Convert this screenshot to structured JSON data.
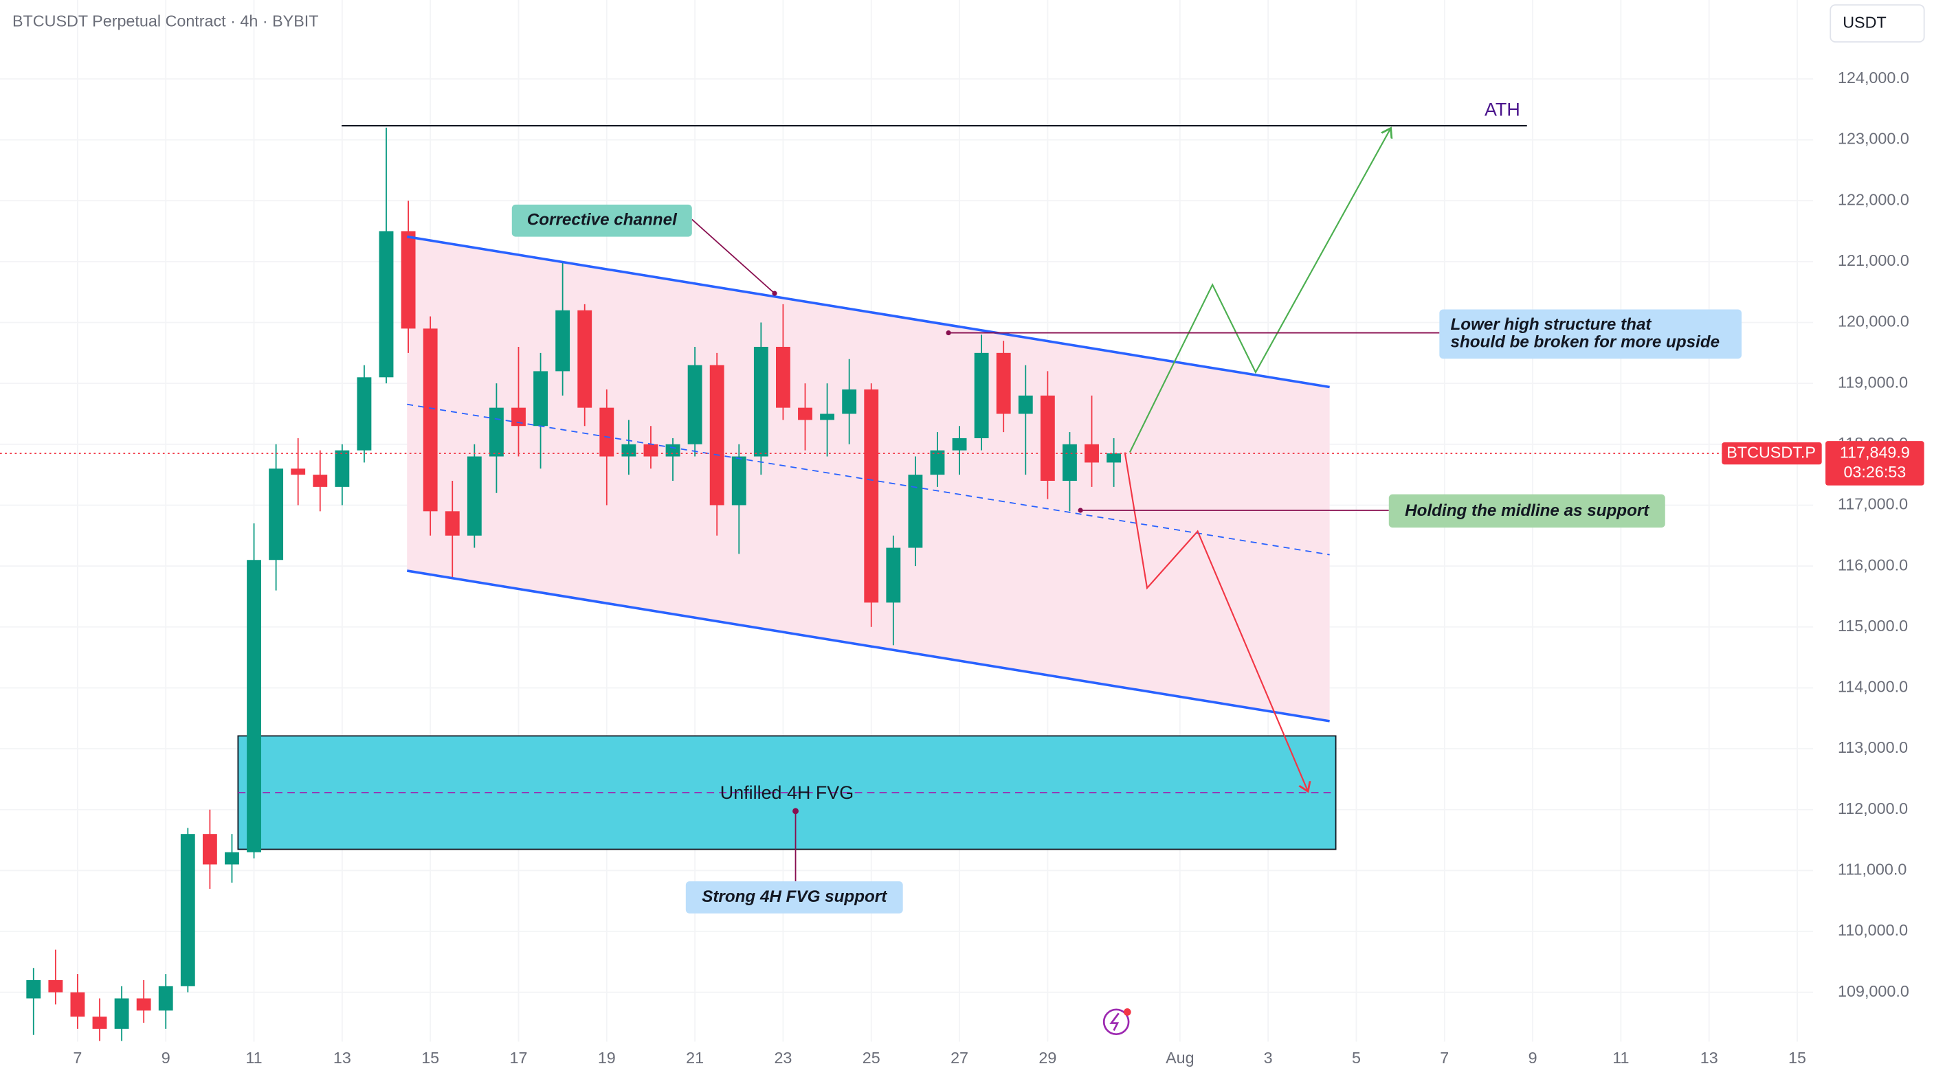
{
  "chart_data": {
    "type": "candlestick",
    "title": "BTCUSDT Perpetual Contract · 4h · BYBIT",
    "currency": "USDT",
    "up_color": "#089981",
    "down_color": "#f23645",
    "x": [
      6,
      6.5,
      7,
      7.5,
      8,
      8.5,
      9,
      9.5,
      10,
      10.5,
      11,
      11.5,
      12,
      12.5,
      13,
      13.5,
      14,
      14.5,
      15,
      15.5,
      16,
      16.5,
      17,
      17.5,
      18,
      18.5,
      19,
      19.5,
      20,
      20.5,
      21,
      21.5,
      22,
      22.5,
      23,
      23.5,
      24,
      24.5,
      25,
      25.5,
      26,
      26.5,
      27,
      27.5,
      28,
      28.5,
      29,
      29.5,
      30,
      30.5
    ],
    "open": [
      108900,
      109200,
      109000,
      108600,
      108400,
      108900,
      108700,
      109100,
      111600,
      111100,
      111300,
      116100,
      117600,
      117500,
      117300,
      117900,
      119100,
      121500,
      119900,
      116900,
      116500,
      117800,
      118600,
      118300,
      119200,
      120200,
      118600,
      117800,
      118000,
      117800,
      118000,
      119300,
      117000,
      117800,
      119600,
      118600,
      118400,
      118500,
      118900,
      115400,
      116300,
      117500,
      117900,
      118100,
      119500,
      118500,
      118800,
      117400,
      118000,
      117700
    ],
    "high": [
      109400,
      109700,
      109300,
      108900,
      109100,
      109200,
      109300,
      111700,
      112000,
      111600,
      116700,
      118000,
      118100,
      117900,
      118000,
      119300,
      123200,
      122000,
      120100,
      117400,
      118000,
      119000,
      119600,
      119500,
      121000,
      120300,
      118900,
      118400,
      118300,
      118100,
      119600,
      119500,
      118000,
      120000,
      120300,
      119000,
      119000,
      119400,
      119000,
      116500,
      117800,
      118200,
      118300,
      119800,
      119700,
      119300,
      119200,
      118200,
      118800,
      118100
    ],
    "low": [
      108300,
      108800,
      108400,
      108200,
      108200,
      108500,
      108400,
      109000,
      110700,
      110800,
      111200,
      115600,
      117000,
      116900,
      117000,
      117700,
      119000,
      119500,
      116500,
      115800,
      116300,
      117200,
      117800,
      117600,
      118800,
      118300,
      117000,
      117500,
      117600,
      117400,
      117800,
      116500,
      116200,
      117500,
      118400,
      117900,
      117800,
      118000,
      115000,
      114700,
      116000,
      117300,
      117500,
      117900,
      118200,
      117500,
      117100,
      116900,
      117300,
      117300
    ],
    "close": [
      109200,
      109000,
      108600,
      108400,
      108900,
      108700,
      109100,
      111600,
      111100,
      111300,
      116100,
      117600,
      117500,
      117300,
      117900,
      119100,
      121500,
      119900,
      116900,
      116500,
      117800,
      118600,
      118300,
      119200,
      120200,
      118600,
      117800,
      118000,
      117800,
      118000,
      119300,
      117000,
      117800,
      119600,
      118600,
      118400,
      118500,
      118900,
      115400,
      116300,
      117500,
      117900,
      118100,
      119500,
      118500,
      118800,
      117400,
      118000,
      117700,
      117849.9
    ],
    "xlim": [
      5.24,
      46.36
    ],
    "ylim": [
      108190,
      125296
    ],
    "xticks": [
      7,
      9,
      11,
      13,
      15,
      17,
      19,
      21,
      23,
      25,
      27,
      29,
      {
        "value": 32,
        "label": "Aug"
      },
      {
        "value": 34,
        "label": "3"
      },
      {
        "value": 36,
        "label": "5"
      },
      {
        "value": 38,
        "label": "7"
      },
      {
        "value": 40,
        "label": "9"
      },
      {
        "value": 42,
        "label": "11"
      },
      {
        "value": 44,
        "label": "13"
      },
      {
        "value": 46,
        "label": "15"
      }
    ],
    "yticks": [
      {
        "value": 109000,
        "label": "109,000.0"
      },
      {
        "value": 110000,
        "label": "110,000.0"
      },
      {
        "value": 111000,
        "label": "111,000.0"
      },
      {
        "value": 112000,
        "label": "112,000.0"
      },
      {
        "value": 113000,
        "label": "113,000.0"
      },
      {
        "value": 114000,
        "label": "114,000.0"
      },
      {
        "value": 115000,
        "label": "115,000.0"
      },
      {
        "value": 116000,
        "label": "116,000.0"
      },
      {
        "value": 117000,
        "label": "117,000.0"
      },
      {
        "value": 118000,
        "label": "118,000.0"
      },
      {
        "value": 119000,
        "label": "119,000.0"
      },
      {
        "value": 120000,
        "label": "120,000.0"
      },
      {
        "value": 121000,
        "label": "121,000.0"
      },
      {
        "value": 122000,
        "label": "122,000.0"
      },
      {
        "value": 123000,
        "label": "123,000.0"
      },
      {
        "value": 124000,
        "label": "124,000.0"
      }
    ],
    "price_line": {
      "value": 117849.9,
      "label": "117,849.9",
      "symbol": "BTCUSDT.P",
      "countdown": "03:26:53"
    },
    "annotations": {
      "ath": "ATH",
      "channel": "Corrective channel",
      "lower_high": [
        "Lower high structure that",
        "should be broken for more upside"
      ],
      "midline": "Holding the midline as support",
      "fvg": "Unfilled 4H FVG",
      "fvg_support": "Strong 4H FVG support"
    }
  }
}
